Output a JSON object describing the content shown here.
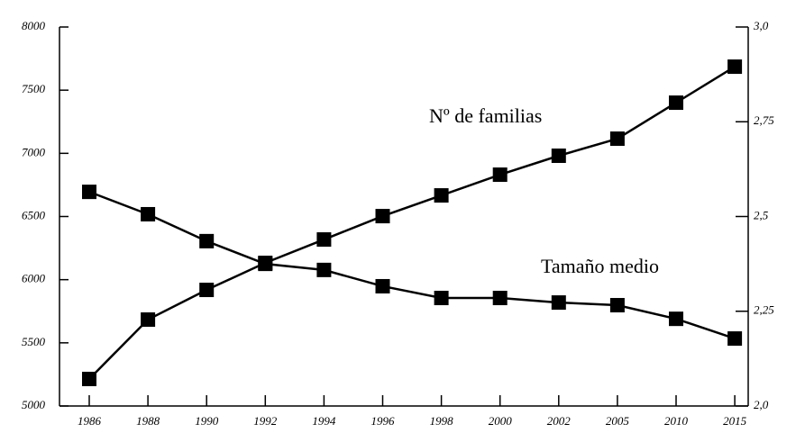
{
  "chart_data": {
    "type": "line",
    "categories": [
      "1986",
      "1988",
      "1990",
      "1992",
      "1994",
      "1996",
      "1998",
      "2000",
      "2002",
      "2005",
      "2010",
      "2015"
    ],
    "series": [
      {
        "name": "Nº de familias",
        "color": "#000000",
        "axis": "y",
        "values": [
          5214,
          5684,
          5919,
          6133,
          6318,
          6503,
          6667,
          6831,
          6981,
          7116,
          7401,
          7686
        ]
      },
      {
        "name": "Tamaño medio",
        "color": "#000000",
        "axis": "y2",
        "values": [
          2.565,
          2.506,
          2.435,
          2.375,
          2.359,
          2.316,
          2.285,
          2.285,
          2.273,
          2.266,
          2.23,
          2.178
        ]
      }
    ],
    "ylim": [
      5000,
      8000
    ],
    "yticks": [
      5000,
      5500,
      6000,
      6500,
      7000,
      7500,
      8000
    ],
    "y2lim": [
      2,
      3
    ],
    "y2ticks": [
      {
        "value": 2,
        "label": "2,0"
      },
      {
        "value": 2.25,
        "label": "2,25"
      },
      {
        "value": 2.5,
        "label": "2,5"
      },
      {
        "value": 2.75,
        "label": "2,75"
      },
      {
        "value": 3,
        "label": "3,0"
      }
    ],
    "grid": false
  }
}
